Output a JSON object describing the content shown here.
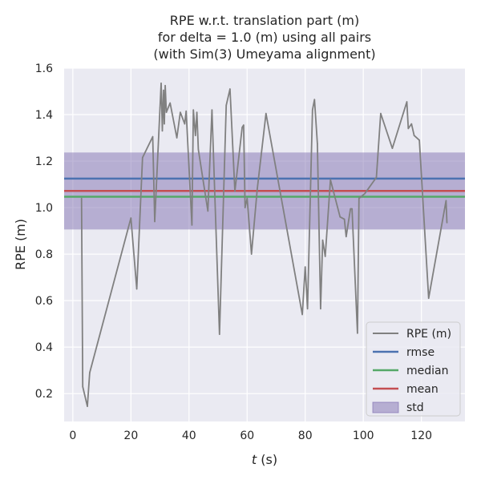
{
  "chart_data": {
    "type": "line",
    "title_lines": [
      "RPE w.r.t. translation part (m)",
      "for delta = 1.0 (m) using all pairs",
      "(with Sim(3) Umeyama alignment)"
    ],
    "xlabel_var": "t",
    "xlabel_unit": " (s)",
    "ylabel": "RPE (m)",
    "xlim": [
      -3,
      135
    ],
    "ylim": [
      0.08,
      1.6
    ],
    "x_ticks": [
      0,
      20,
      40,
      60,
      80,
      100,
      120
    ],
    "y_ticks": [
      0.2,
      0.4,
      0.6,
      0.8,
      1.0,
      1.2,
      1.4,
      1.6
    ],
    "y_tick_labels": [
      "0.2",
      "0.4",
      "0.6",
      "0.8",
      "1.0",
      "1.2",
      "1.4",
      "1.6"
    ],
    "grid": true,
    "legend_position": "lower-right",
    "stats": {
      "rmse": 1.125,
      "median": 1.047,
      "mean": 1.072,
      "std_band": [
        0.906,
        1.237
      ]
    },
    "colors": {
      "background": "#eaeaf2",
      "grid": "#ffffff",
      "rpe": "#808080",
      "rmse": "#4c72b0",
      "median": "#55a868",
      "mean": "#c44e52",
      "std": "#8172b2"
    },
    "legend": [
      {
        "key": "rpe",
        "label": "RPE (m)",
        "kind": "line"
      },
      {
        "key": "rmse",
        "label": "rmse",
        "kind": "line"
      },
      {
        "key": "median",
        "label": "median",
        "kind": "line"
      },
      {
        "key": "mean",
        "label": "mean",
        "kind": "line"
      },
      {
        "key": "std",
        "label": "std",
        "kind": "patch"
      }
    ],
    "series": [
      {
        "key": "rpe",
        "x": [
          3.0,
          3.4,
          5.0,
          5.8,
          20.0,
          22.0,
          24.0,
          27.5,
          28.2,
          30.0,
          30.4,
          30.8,
          31.2,
          31.5,
          31.8,
          32.2,
          33.5,
          35.8,
          37.0,
          38.5,
          39.0,
          41.0,
          41.5,
          42.2,
          42.7,
          43.2,
          46.5,
          47.9,
          50.5,
          52.8,
          54.1,
          55.8,
          58.3,
          58.8,
          59.3,
          60.0,
          61.5,
          63.5,
          66.5,
          79.0,
          80.0,
          80.8,
          82.5,
          83.2,
          84.2,
          85.3,
          86.0,
          86.9,
          88.7,
          92.0,
          93.5,
          94.1,
          95.6,
          96.1,
          98.0,
          98.5,
          100.5,
          104.5,
          106.0,
          110.0,
          115.0,
          115.5,
          116.6,
          117.5,
          119.3,
          122.5,
          128.5,
          128.8
        ],
        "y": [
          1.04,
          0.23,
          0.145,
          0.29,
          0.955,
          0.65,
          1.215,
          1.305,
          0.94,
          1.43,
          1.535,
          1.33,
          1.505,
          1.36,
          1.525,
          1.41,
          1.45,
          1.3,
          1.41,
          1.36,
          1.415,
          0.925,
          1.42,
          1.31,
          1.41,
          1.25,
          0.985,
          1.42,
          0.455,
          1.44,
          1.51,
          1.07,
          1.345,
          1.355,
          1.0,
          1.04,
          0.8,
          1.08,
          1.405,
          0.54,
          0.745,
          0.565,
          1.42,
          1.465,
          1.275,
          0.565,
          0.86,
          0.79,
          1.12,
          0.96,
          0.95,
          0.875,
          0.995,
          0.995,
          0.46,
          1.04,
          1.06,
          1.13,
          1.405,
          1.255,
          1.455,
          1.34,
          1.36,
          1.31,
          1.29,
          0.61,
          1.03,
          0.935
        ]
      }
    ]
  }
}
